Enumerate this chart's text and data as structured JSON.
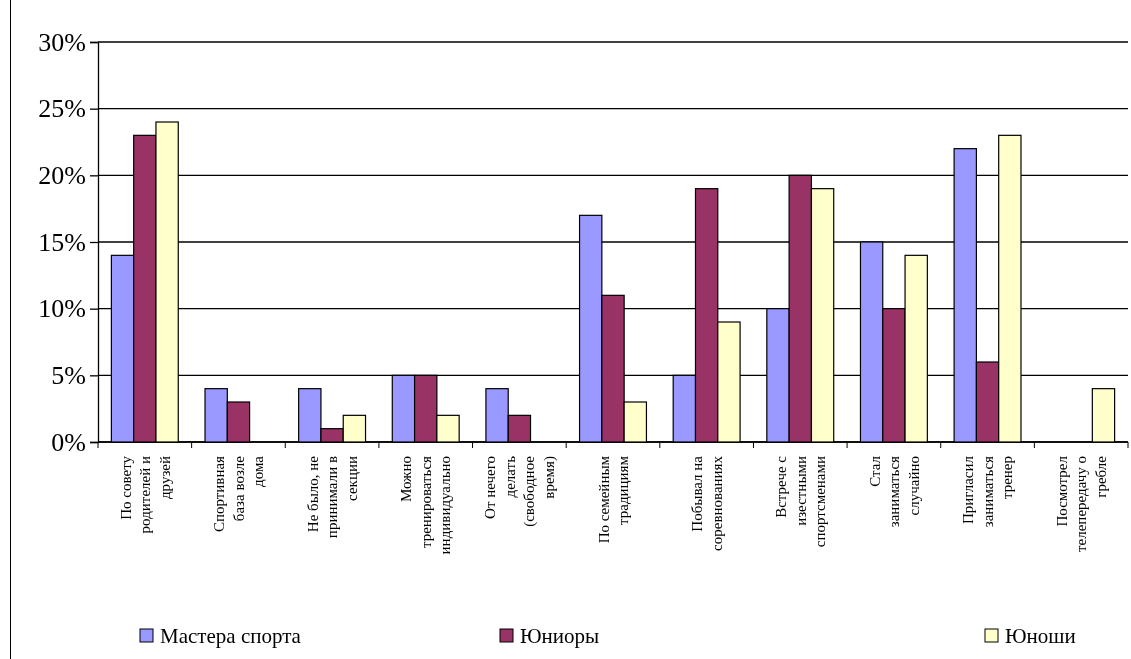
{
  "chart_data": {
    "type": "bar",
    "categories": [
      "По совету родителей и друзей",
      "Спортивная база возле дома",
      "Не было, не принимали в секции",
      "Можно тренироваться индивидуально",
      "От нечего делать (свободное время)",
      "По семейным традициям",
      "Побывал на соревнованиях",
      "Встрече с изестными спортсменами",
      "Стал заниматься случайно",
      "Пригласил заниматься тренер",
      "Посмотрел телепередачу о гребле"
    ],
    "series": [
      {
        "name": "Мастера спорта",
        "color": "#9999ff",
        "values": [
          14,
          4,
          4,
          5,
          4,
          17,
          5,
          10,
          15,
          22,
          0
        ]
      },
      {
        "name": "Юниоры",
        "color": "#993366",
        "values": [
          23,
          3,
          1,
          5,
          2,
          11,
          19,
          20,
          10,
          6,
          0
        ]
      },
      {
        "name": "Юноши",
        "color": "#ffffcc",
        "values": [
          24,
          0,
          2,
          2,
          0,
          3,
          9,
          19,
          14,
          23,
          4
        ]
      }
    ],
    "ylim": [
      0,
      30
    ],
    "yticks": [
      {
        "value": 0,
        "label": "0%"
      },
      {
        "value": 5,
        "label": "5%"
      },
      {
        "value": 10,
        "label": "10%"
      },
      {
        "value": 15,
        "label": "15%"
      },
      {
        "value": 20,
        "label": "20%"
      },
      {
        "value": 25,
        "label": "25%"
      },
      {
        "value": 30,
        "label": "30%"
      }
    ],
    "grid": "y",
    "legend": "bottom"
  }
}
